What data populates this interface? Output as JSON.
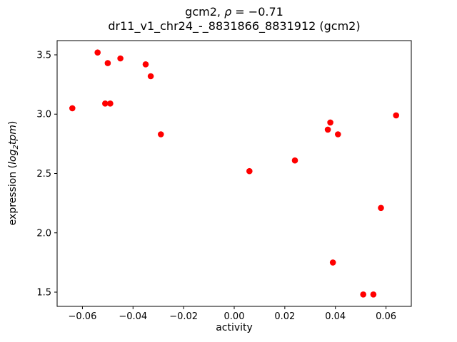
{
  "figure": {
    "background": "#ffffff",
    "title_prefix": "gcm2, ",
    "title_rho": "ρ",
    "title_suffix": " = −0.71",
    "subtitle": "dr11_v1_chr24_-_8831866_8831912 (gcm2)",
    "xlabel": "activity",
    "ylabel_prefix": "expression (",
    "ylabel_math_log": "log",
    "ylabel_sub": "2",
    "ylabel_math_tpm": "tpm",
    "ylabel_suffix": ")"
  },
  "chart_data": {
    "type": "scatter",
    "title": "gcm2, ρ = −0.71",
    "subtitle": "dr11_v1_chr24_-_8831866_8831912 (gcm2)",
    "xlabel": "activity",
    "ylabel": "expression (log2tpm)",
    "legend": "none",
    "grid": false,
    "marker_color": "#ff0000",
    "marker_radius": 4.3,
    "xlim": [
      -0.07,
      0.07
    ],
    "ylim": [
      1.38,
      3.62
    ],
    "x_ticks": [
      -0.06,
      -0.04,
      -0.02,
      0.0,
      0.02,
      0.04,
      0.06
    ],
    "x_tick_labels": [
      "−0.06",
      "−0.04",
      "−0.02",
      "0.00",
      "0.02",
      "0.04",
      "0.06"
    ],
    "y_ticks": [
      1.5,
      2.0,
      2.5,
      3.0,
      3.5
    ],
    "y_tick_labels": [
      "1.5",
      "2.0",
      "2.5",
      "3.0",
      "3.5"
    ],
    "points": [
      [
        -0.064,
        3.05
      ],
      [
        -0.054,
        3.52
      ],
      [
        -0.051,
        3.09
      ],
      [
        -0.049,
        3.09
      ],
      [
        -0.05,
        3.43
      ],
      [
        -0.045,
        3.47
      ],
      [
        -0.035,
        3.42
      ],
      [
        -0.033,
        3.32
      ],
      [
        -0.029,
        2.83
      ],
      [
        0.006,
        2.52
      ],
      [
        0.024,
        2.61
      ],
      [
        0.037,
        2.87
      ],
      [
        0.038,
        2.93
      ],
      [
        0.041,
        2.83
      ],
      [
        0.039,
        1.75
      ],
      [
        0.051,
        1.48
      ],
      [
        0.055,
        1.48
      ],
      [
        0.058,
        2.21
      ],
      [
        0.064,
        2.99
      ]
    ]
  }
}
